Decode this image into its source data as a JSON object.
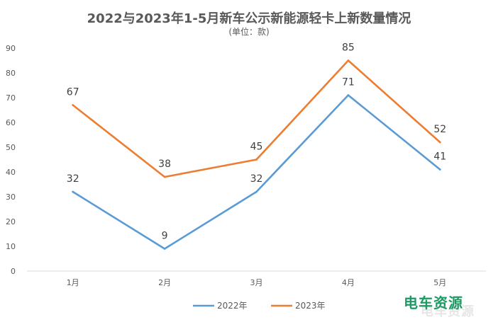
{
  "chart_data": {
    "type": "line",
    "title": "2022与2023年1-5月新车公示新能源轻卡上新数量情况",
    "subtitle": "(单位：款)",
    "categories": [
      "1月",
      "2月",
      "3月",
      "4月",
      "5月"
    ],
    "series": [
      {
        "name": "2022年",
        "values": [
          32,
          9,
          32,
          71,
          41
        ],
        "color": "#5b9bd5"
      },
      {
        "name": "2023年",
        "values": [
          67,
          38,
          45,
          85,
          52
        ],
        "color": "#ed7d31"
      }
    ],
    "ylim": [
      0,
      90
    ],
    "yticks": [
      0,
      10,
      20,
      30,
      40,
      50,
      60,
      70,
      80,
      90
    ],
    "grid": false,
    "legend_position": "bottom",
    "data_labels": true
  },
  "watermark": {
    "text": "电车资源"
  }
}
